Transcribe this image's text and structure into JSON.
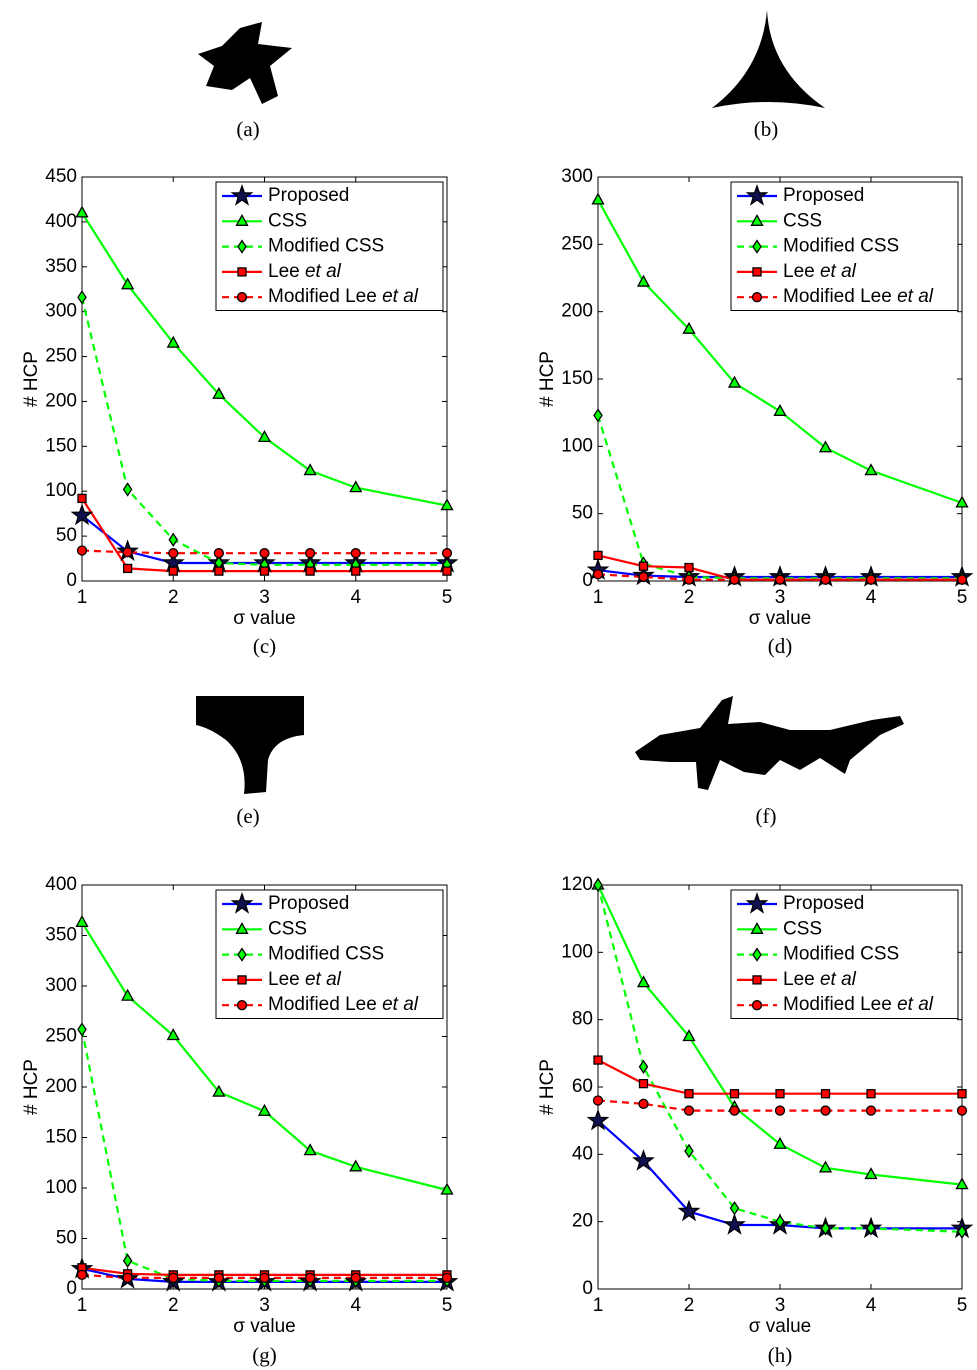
{
  "shape_captions": [
    "(a)",
    "(b)",
    "(e)",
    "(f)"
  ],
  "chart_data": [
    {
      "type": "line",
      "caption": "(c)",
      "x_label": "σ value",
      "y_label": "# HCP",
      "x": [
        1,
        1.5,
        2,
        2.5,
        3,
        3.5,
        4,
        5
      ],
      "xlim": [
        1,
        5
      ],
      "xticks": [
        1,
        2,
        3,
        4,
        5
      ],
      "ylim": [
        0,
        450
      ],
      "yticks": [
        0,
        50,
        100,
        150,
        200,
        250,
        300,
        350,
        400,
        450
      ],
      "legend": "upper right",
      "series": [
        {
          "name": "Proposed",
          "color": "#0000ff",
          "marker": "star",
          "linestyle": "solid",
          "values": [
            73,
            33,
            20,
            20,
            20,
            20,
            20,
            20
          ]
        },
        {
          "name": "CSS",
          "color": "#00ff00",
          "marker": "triangle",
          "linestyle": "solid",
          "values": [
            410,
            330,
            265,
            208,
            160,
            123,
            104,
            84
          ]
        },
        {
          "name": "Modified CSS",
          "color": "#00ff00",
          "marker": "diamond",
          "linestyle": "dashed",
          "values": [
            316,
            102,
            46,
            20,
            18,
            18,
            18,
            18
          ]
        },
        {
          "name": "Lee et al",
          "color": "#ff0000",
          "marker": "square",
          "linestyle": "solid",
          "values": [
            92,
            14,
            11,
            11,
            11,
            11,
            11,
            11
          ]
        },
        {
          "name": "Modified Lee et al",
          "color": "#ff0000",
          "marker": "circle",
          "linestyle": "dashed",
          "values": [
            34,
            32,
            31,
            31,
            31,
            31,
            31,
            31
          ]
        }
      ]
    },
    {
      "type": "line",
      "caption": "(d)",
      "x_label": "σ value",
      "y_label": "# HCP",
      "x": [
        1,
        1.5,
        2,
        2.5,
        3,
        3.5,
        4,
        5
      ],
      "xlim": [
        1,
        5
      ],
      "xticks": [
        1,
        2,
        3,
        4,
        5
      ],
      "ylim": [
        0,
        300
      ],
      "yticks": [
        0,
        50,
        100,
        150,
        200,
        250,
        300
      ],
      "legend": "upper right",
      "series": [
        {
          "name": "Proposed",
          "color": "#0000ff",
          "marker": "star",
          "linestyle": "solid",
          "values": [
            8,
            4,
            3,
            3,
            3,
            3,
            3,
            3
          ]
        },
        {
          "name": "CSS",
          "color": "#00ff00",
          "marker": "triangle",
          "linestyle": "solid",
          "values": [
            283,
            222,
            187,
            147,
            126,
            99,
            82,
            58
          ]
        },
        {
          "name": "Modified CSS",
          "color": "#00ff00",
          "marker": "diamond",
          "linestyle": "dashed",
          "values": [
            123,
            13,
            3,
            2,
            2,
            2,
            2,
            2
          ]
        },
        {
          "name": "Lee et al",
          "color": "#ff0000",
          "marker": "square",
          "linestyle": "solid",
          "values": [
            19,
            11,
            10,
            1,
            1,
            1,
            1,
            1
          ]
        },
        {
          "name": "Modified Lee et al",
          "color": "#ff0000",
          "marker": "circle",
          "linestyle": "dashed",
          "values": [
            5,
            3,
            1,
            1,
            1,
            1,
            1,
            1
          ]
        }
      ]
    },
    {
      "type": "line",
      "caption": "(g)",
      "x_label": "σ value",
      "y_label": "# HCP",
      "x": [
        1,
        1.5,
        2,
        2.5,
        3,
        3.5,
        4,
        5
      ],
      "xlim": [
        1,
        5
      ],
      "xticks": [
        1,
        2,
        3,
        4,
        5
      ],
      "ylim": [
        0,
        400
      ],
      "yticks": [
        0,
        50,
        100,
        150,
        200,
        250,
        300,
        350,
        400
      ],
      "legend": "upper right",
      "series": [
        {
          "name": "Proposed",
          "color": "#0000ff",
          "marker": "star",
          "linestyle": "solid",
          "values": [
            20,
            10,
            7,
            7,
            7,
            7,
            7,
            7
          ]
        },
        {
          "name": "CSS",
          "color": "#00ff00",
          "marker": "triangle",
          "linestyle": "solid",
          "values": [
            363,
            290,
            251,
            195,
            176,
            137,
            121,
            98
          ]
        },
        {
          "name": "Modified CSS",
          "color": "#00ff00",
          "marker": "diamond",
          "linestyle": "dashed",
          "values": [
            257,
            28,
            10,
            8,
            8,
            8,
            8,
            8
          ]
        },
        {
          "name": "Lee et al",
          "color": "#ff0000",
          "marker": "square",
          "linestyle": "solid",
          "values": [
            21,
            15,
            14,
            14,
            14,
            14,
            14,
            14
          ]
        },
        {
          "name": "Modified Lee et al",
          "color": "#ff0000",
          "marker": "circle",
          "linestyle": "dashed",
          "values": [
            14,
            11,
            11,
            11,
            11,
            11,
            11,
            11
          ]
        }
      ]
    },
    {
      "type": "line",
      "caption": "(h)",
      "x_label": "σ value",
      "y_label": "# HCP",
      "x": [
        1,
        1.5,
        2,
        2.5,
        3,
        3.5,
        4,
        5
      ],
      "xlim": [
        1,
        5
      ],
      "xticks": [
        1,
        2,
        3,
        4,
        5
      ],
      "ylim": [
        0,
        120
      ],
      "yticks": [
        0,
        20,
        40,
        60,
        80,
        100,
        120
      ],
      "legend": "upper right",
      "series": [
        {
          "name": "Proposed",
          "color": "#0000ff",
          "marker": "star",
          "linestyle": "solid",
          "values": [
            50,
            38,
            23,
            19,
            19,
            18,
            18,
            18
          ]
        },
        {
          "name": "CSS",
          "color": "#00ff00",
          "marker": "triangle",
          "linestyle": "solid",
          "values": [
            120,
            91,
            75,
            54,
            43,
            36,
            34,
            31
          ]
        },
        {
          "name": "Modified CSS",
          "color": "#00ff00",
          "marker": "diamond",
          "linestyle": "dashed",
          "values": [
            120,
            66,
            41,
            24,
            20,
            18,
            18,
            17
          ]
        },
        {
          "name": "Lee et al",
          "color": "#ff0000",
          "marker": "square",
          "linestyle": "solid",
          "values": [
            68,
            61,
            58,
            58,
            58,
            58,
            58,
            58
          ]
        },
        {
          "name": "Modified Lee et al",
          "color": "#ff0000",
          "marker": "circle",
          "linestyle": "dashed",
          "values": [
            56,
            55,
            53,
            53,
            53,
            53,
            53,
            53
          ]
        }
      ]
    }
  ]
}
